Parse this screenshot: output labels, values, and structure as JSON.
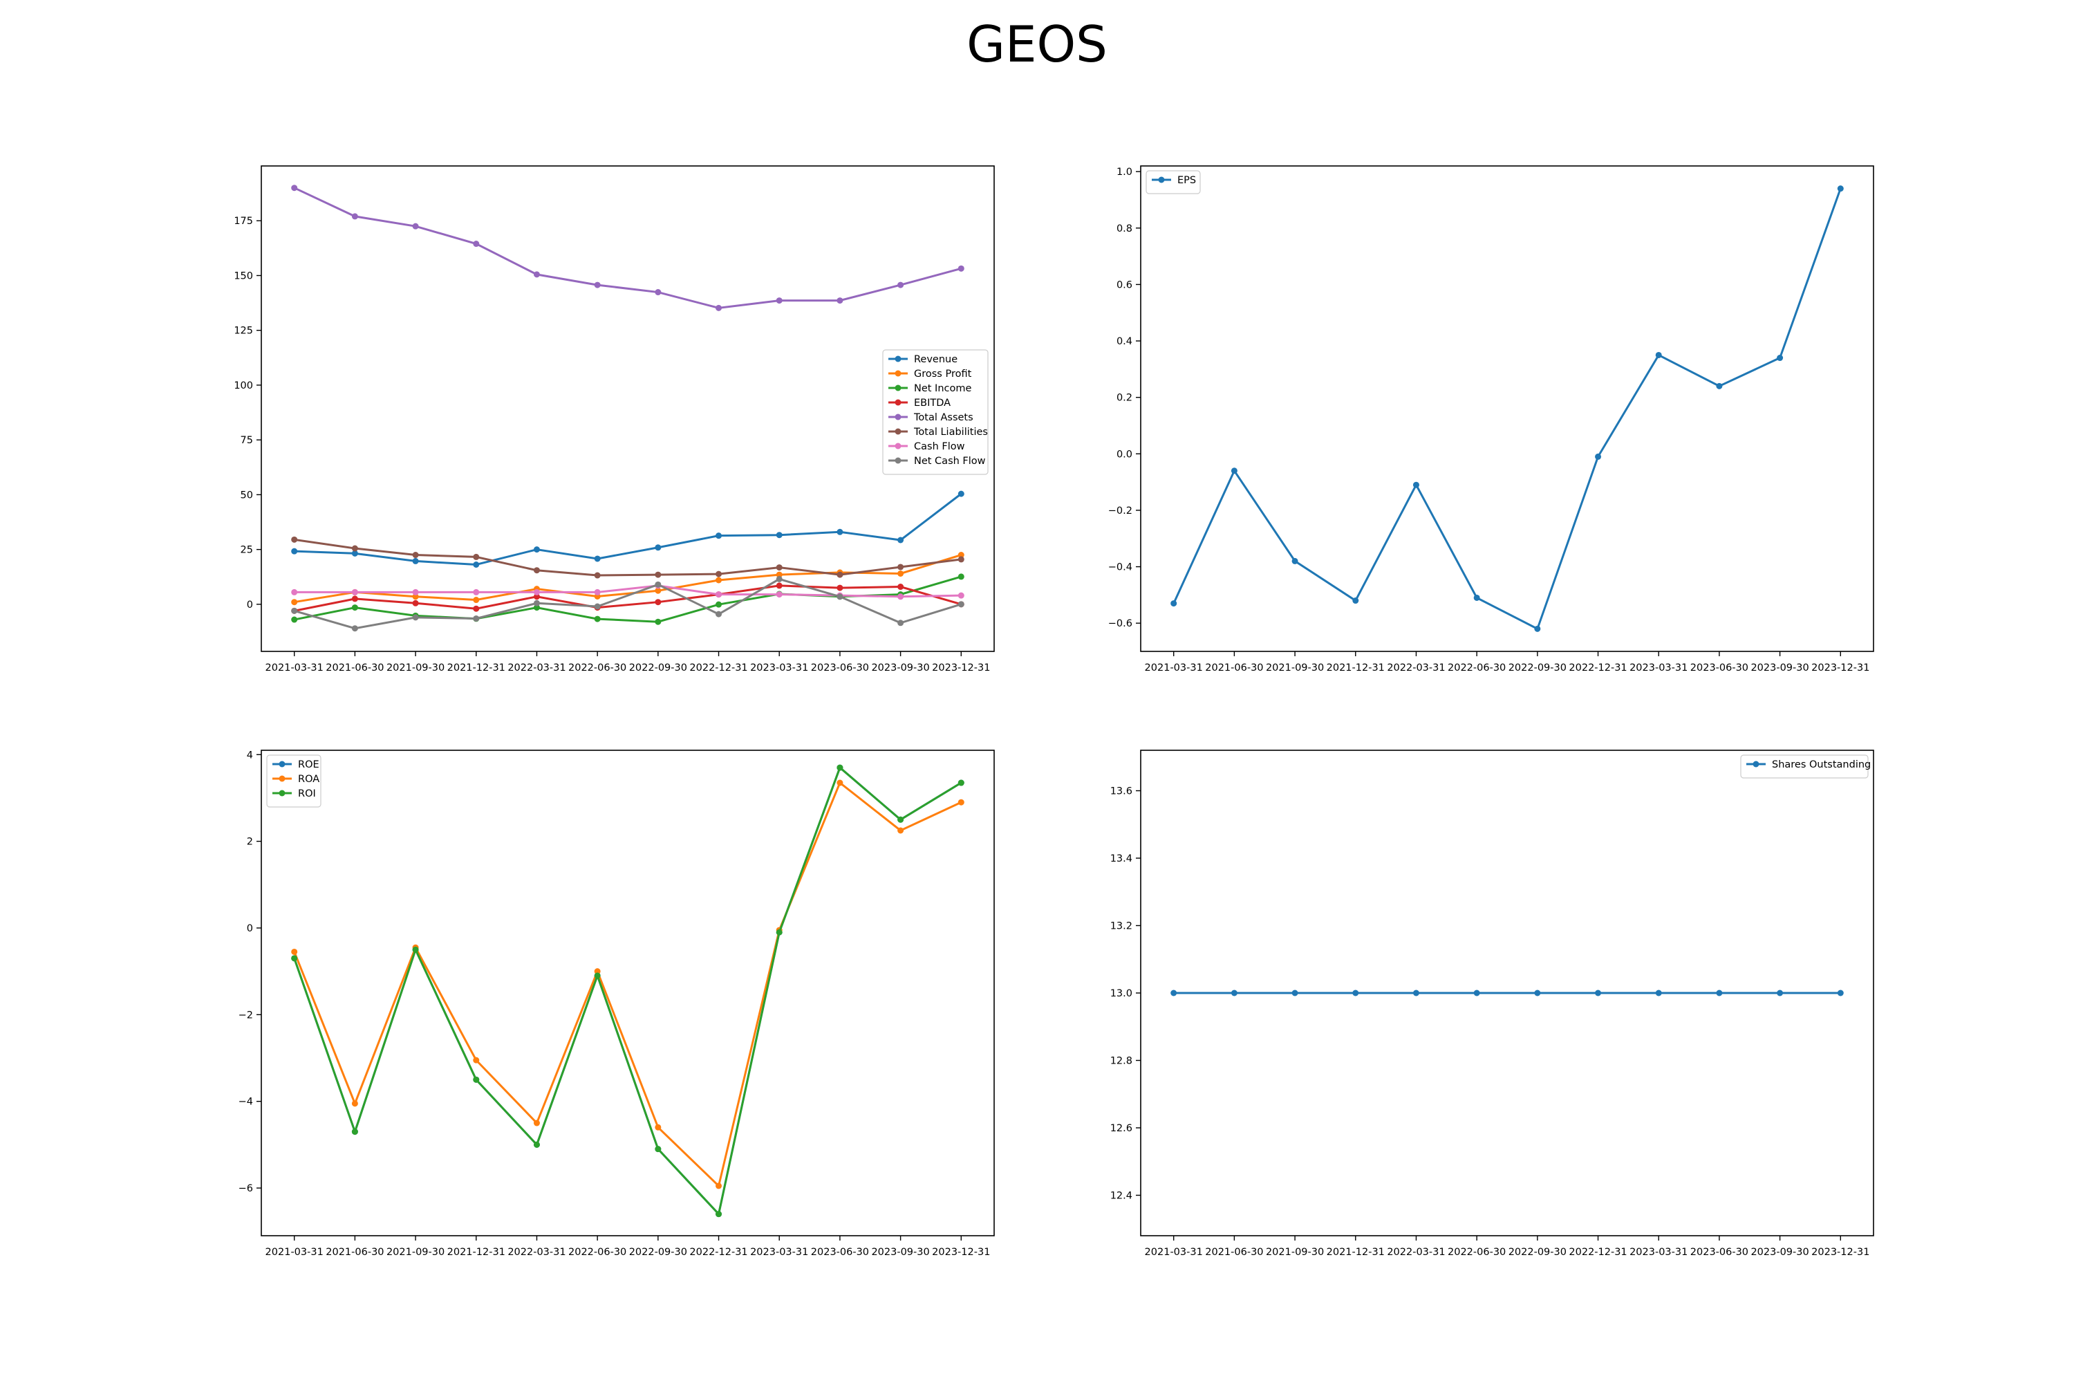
{
  "title": "GEOS",
  "chart_data": [
    {
      "type": "line",
      "x": [
        "2021-03-31",
        "2021-06-30",
        "2021-09-30",
        "2021-12-31",
        "2022-03-31",
        "2022-06-30",
        "2022-09-30",
        "2022-12-31",
        "2023-03-31",
        "2023-06-30",
        "2023-09-30",
        "2023-12-31"
      ],
      "ylim": [
        -21.5,
        200
      ],
      "yticks": [
        0,
        25,
        50,
        75,
        100,
        125,
        150,
        175
      ],
      "legend": "center-right",
      "grid": false,
      "series": [
        {
          "name": "Revenue",
          "color": "#1f77b4",
          "values": [
            24.2,
            23.2,
            19.7,
            18.1,
            25.0,
            20.8,
            25.9,
            31.3,
            31.6,
            33.0,
            29.3,
            50.4
          ]
        },
        {
          "name": "Gross Profit",
          "color": "#ff7f0e",
          "values": [
            1.0,
            5.5,
            3.5,
            2.0,
            7.0,
            3.6,
            6.2,
            11.0,
            13.5,
            14.5,
            14.0,
            22.5
          ]
        },
        {
          "name": "Net Income",
          "color": "#2ca02c",
          "values": [
            -7.0,
            -1.5,
            -5.2,
            -6.6,
            -1.5,
            -6.7,
            -8.0,
            -0.1,
            4.7,
            3.5,
            4.5,
            12.6
          ]
        },
        {
          "name": "EBITDA",
          "color": "#d62728",
          "values": [
            -3.0,
            2.5,
            0.5,
            -2.0,
            3.5,
            -1.5,
            1.0,
            4.5,
            8.5,
            7.5,
            8.0,
            0.0
          ]
        },
        {
          "name": "Total Assets",
          "color": "#9467bd",
          "values": [
            190.0,
            177.0,
            172.5,
            164.5,
            150.5,
            145.7,
            142.4,
            135.2,
            138.6,
            138.6,
            145.7,
            153.2
          ]
        },
        {
          "name": "Total Liabilities",
          "color": "#8c564b",
          "values": [
            29.5,
            25.5,
            22.5,
            21.6,
            15.5,
            13.2,
            13.5,
            13.8,
            16.8,
            13.5,
            17.0,
            20.5
          ]
        },
        {
          "name": "Cash Flow",
          "color": "#e377c2",
          "values": [
            5.5,
            5.5,
            5.5,
            5.5,
            5.5,
            5.5,
            8.5,
            4.5,
            4.5,
            4.0,
            3.5,
            4.0
          ]
        },
        {
          "name": "Net Cash Flow",
          "color": "#7f7f7f",
          "values": [
            -3.0,
            -11.0,
            -6.0,
            -6.5,
            0.5,
            -1.0,
            9.0,
            -4.5,
            11.5,
            3.5,
            -8.5,
            0.0
          ]
        }
      ]
    },
    {
      "type": "line",
      "x": [
        "2021-03-31",
        "2021-06-30",
        "2021-09-30",
        "2021-12-31",
        "2022-03-31",
        "2022-06-30",
        "2022-09-30",
        "2022-12-31",
        "2023-03-31",
        "2023-06-30",
        "2023-09-30",
        "2023-12-31"
      ],
      "ylim": [
        -0.7,
        1.02
      ],
      "yticks": [
        -0.6,
        -0.4,
        -0.2,
        0.0,
        0.2,
        0.4,
        0.6,
        0.8,
        1.0
      ],
      "legend": "top-left",
      "grid": false,
      "series": [
        {
          "name": "EPS",
          "color": "#1f77b4",
          "values": [
            -0.53,
            -0.06,
            -0.38,
            -0.52,
            -0.11,
            -0.51,
            -0.62,
            -0.01,
            0.35,
            0.24,
            0.34,
            0.94
          ]
        }
      ]
    },
    {
      "type": "line",
      "x": [
        "2021-03-31",
        "2021-06-30",
        "2021-09-30",
        "2021-12-31",
        "2022-03-31",
        "2022-06-30",
        "2022-09-30",
        "2022-12-31",
        "2023-03-31",
        "2023-06-30",
        "2023-09-30",
        "2023-12-31"
      ],
      "ylim": [
        -7.1,
        4.1
      ],
      "yticks": [
        -6,
        -4,
        -2,
        0,
        2,
        4
      ],
      "legend": "top-left",
      "grid": false,
      "series": [
        {
          "name": "ROE",
          "color": "#1f77b4",
          "values": [
            -0.7,
            -4.7,
            -0.5,
            -3.5,
            -5.0,
            -1.1,
            -5.1,
            -6.6,
            -0.1,
            3.7,
            2.5,
            3.35
          ]
        },
        {
          "name": "ROA",
          "color": "#ff7f0e",
          "values": [
            -0.55,
            -4.05,
            -0.45,
            -3.05,
            -4.5,
            -1.0,
            -4.6,
            -5.95,
            -0.05,
            3.35,
            2.25,
            2.9
          ]
        },
        {
          "name": "ROI",
          "color": "#2ca02c",
          "values": [
            -0.7,
            -4.7,
            -0.5,
            -3.5,
            -5.0,
            -1.1,
            -5.1,
            -6.6,
            -0.1,
            3.7,
            2.5,
            3.35
          ]
        }
      ]
    },
    {
      "type": "line",
      "x": [
        "2021-03-31",
        "2021-06-30",
        "2021-09-30",
        "2021-12-31",
        "2022-03-31",
        "2022-06-30",
        "2022-09-30",
        "2022-12-31",
        "2023-03-31",
        "2023-06-30",
        "2023-09-30",
        "2023-12-31"
      ],
      "ylim": [
        12.28,
        13.72
      ],
      "yticks": [
        "12.4",
        "12.6",
        "12.8",
        "13.0",
        "13.2",
        "13.4",
        "13.6"
      ],
      "legend": "top-right",
      "grid": false,
      "series": [
        {
          "name": "Shares Outstanding",
          "color": "#1f77b4",
          "values": [
            13.0,
            13.0,
            13.0,
            13.0,
            13.0,
            13.0,
            13.0,
            13.0,
            13.0,
            13.0,
            13.0,
            13.0
          ]
        }
      ]
    }
  ]
}
